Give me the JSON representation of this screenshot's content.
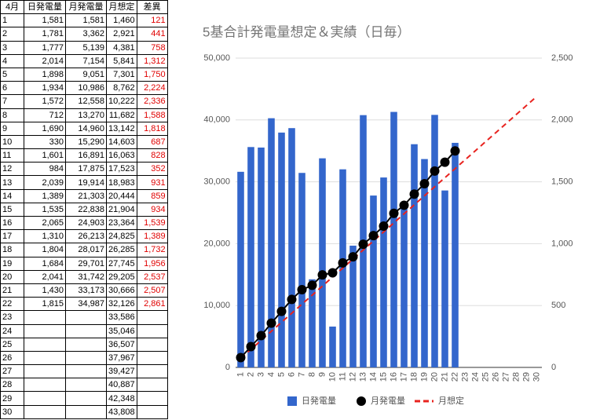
{
  "table": {
    "headers": [
      "4月",
      "日発電量",
      "月発電量",
      "月想定",
      "差異"
    ],
    "rows": [
      {
        "day": "1",
        "daily": "1,581",
        "monthly": "1,581",
        "plan": "1,460",
        "diff": "121"
      },
      {
        "day": "2",
        "daily": "1,781",
        "monthly": "3,362",
        "plan": "2,921",
        "diff": "441"
      },
      {
        "day": "3",
        "daily": "1,777",
        "monthly": "5,139",
        "plan": "4,381",
        "diff": "758"
      },
      {
        "day": "4",
        "daily": "2,014",
        "monthly": "7,154",
        "plan": "5,841",
        "diff": "1,312"
      },
      {
        "day": "5",
        "daily": "1,898",
        "monthly": "9,051",
        "plan": "7,301",
        "diff": "1,750"
      },
      {
        "day": "6",
        "daily": "1,934",
        "monthly": "10,986",
        "plan": "8,762",
        "diff": "2,224"
      },
      {
        "day": "7",
        "daily": "1,572",
        "monthly": "12,558",
        "plan": "10,222",
        "diff": "2,336"
      },
      {
        "day": "8",
        "daily": "712",
        "monthly": "13,270",
        "plan": "11,682",
        "diff": "1,588"
      },
      {
        "day": "9",
        "daily": "1,690",
        "monthly": "14,960",
        "plan": "13,142",
        "diff": "1,818"
      },
      {
        "day": "10",
        "daily": "330",
        "monthly": "15,290",
        "plan": "14,603",
        "diff": "687"
      },
      {
        "day": "11",
        "daily": "1,601",
        "monthly": "16,891",
        "plan": "16,063",
        "diff": "828"
      },
      {
        "day": "12",
        "daily": "984",
        "monthly": "17,875",
        "plan": "17,523",
        "diff": "352"
      },
      {
        "day": "13",
        "daily": "2,039",
        "monthly": "19,914",
        "plan": "18,983",
        "diff": "931"
      },
      {
        "day": "14",
        "daily": "1,389",
        "monthly": "21,303",
        "plan": "20,444",
        "diff": "859"
      },
      {
        "day": "15",
        "daily": "1,535",
        "monthly": "22,838",
        "plan": "21,904",
        "diff": "934"
      },
      {
        "day": "16",
        "daily": "2,065",
        "monthly": "24,903",
        "plan": "23,364",
        "diff": "1,539"
      },
      {
        "day": "17",
        "daily": "1,310",
        "monthly": "26,213",
        "plan": "24,825",
        "diff": "1,389"
      },
      {
        "day": "18",
        "daily": "1,804",
        "monthly": "28,017",
        "plan": "26,285",
        "diff": "1,732"
      },
      {
        "day": "19",
        "daily": "1,684",
        "monthly": "29,701",
        "plan": "27,745",
        "diff": "1,956"
      },
      {
        "day": "20",
        "daily": "2,041",
        "monthly": "31,742",
        "plan": "29,205",
        "diff": "2,537"
      },
      {
        "day": "21",
        "daily": "1,430",
        "monthly": "33,173",
        "plan": "30,666",
        "diff": "2,507"
      },
      {
        "day": "22",
        "daily": "1,815",
        "monthly": "34,987",
        "plan": "32,126",
        "diff": "2,861"
      },
      {
        "day": "23",
        "plan": "33,586"
      },
      {
        "day": "24",
        "plan": "35,046"
      },
      {
        "day": "25",
        "plan": "36,507"
      },
      {
        "day": "26",
        "plan": "37,967"
      },
      {
        "day": "27",
        "plan": "39,427"
      },
      {
        "day": "28",
        "plan": "40,887"
      },
      {
        "day": "29",
        "plan": "42,348"
      },
      {
        "day": "30",
        "plan": "43,808"
      }
    ]
  },
  "chart_data": {
    "type": "combo",
    "title": "5基合計発電量想定＆実績（日毎）",
    "categories": [
      "1",
      "2",
      "3",
      "4",
      "5",
      "6",
      "7",
      "8",
      "9",
      "10",
      "11",
      "12",
      "13",
      "14",
      "15",
      "16",
      "17",
      "18",
      "19",
      "20",
      "21",
      "22",
      "23",
      "24",
      "25",
      "26",
      "27",
      "28",
      "29",
      "30"
    ],
    "series": [
      {
        "name": "日発電量",
        "kind": "bar",
        "axis": "y2",
        "color": "#3366cc",
        "values": [
          1581,
          1781,
          1777,
          2014,
          1898,
          1934,
          1572,
          712,
          1690,
          330,
          1601,
          984,
          2039,
          1389,
          1535,
          2065,
          1310,
          1804,
          1684,
          2041,
          1430,
          1815,
          null,
          null,
          null,
          null,
          null,
          null,
          null,
          null
        ]
      },
      {
        "name": "月発電量",
        "kind": "line-dots",
        "color": "#000000",
        "values": [
          1581,
          3362,
          5139,
          7154,
          9051,
          10986,
          12558,
          13270,
          14960,
          15290,
          16891,
          17875,
          19914,
          21303,
          22838,
          24903,
          26213,
          28017,
          29701,
          31742,
          33173,
          34987,
          null,
          null,
          null,
          null,
          null,
          null,
          null,
          null
        ]
      },
      {
        "name": "月想定",
        "kind": "dashed-line",
        "color": "#e8231f",
        "values": [
          1460,
          2921,
          4381,
          5841,
          7301,
          8762,
          10222,
          11682,
          13142,
          14603,
          16063,
          17523,
          18983,
          20444,
          21904,
          23364,
          24825,
          26285,
          27745,
          29205,
          30666,
          32126,
          33586,
          35046,
          36507,
          37967,
          39427,
          40887,
          42348,
          43808
        ]
      }
    ],
    "ylim": [
      0,
      50000
    ],
    "yticks": [
      0,
      {
        "value": 10000,
        "label": "10,000"
      },
      {
        "value": 20000,
        "label": "20,000"
      },
      {
        "value": 30000,
        "label": "30,000"
      },
      {
        "value": 40000,
        "label": "40,000"
      },
      {
        "value": 50000,
        "label": "50,000"
      }
    ],
    "y2lim": [
      0,
      2500
    ],
    "y2ticks": [
      0,
      500,
      {
        "value": 1000,
        "label": "1,000"
      },
      {
        "value": 1500,
        "label": "1,500"
      },
      {
        "value": 2000,
        "label": "2,000"
      },
      {
        "value": 2500,
        "label": "2,500"
      }
    ],
    "grid": true,
    "legend": "bottom"
  }
}
